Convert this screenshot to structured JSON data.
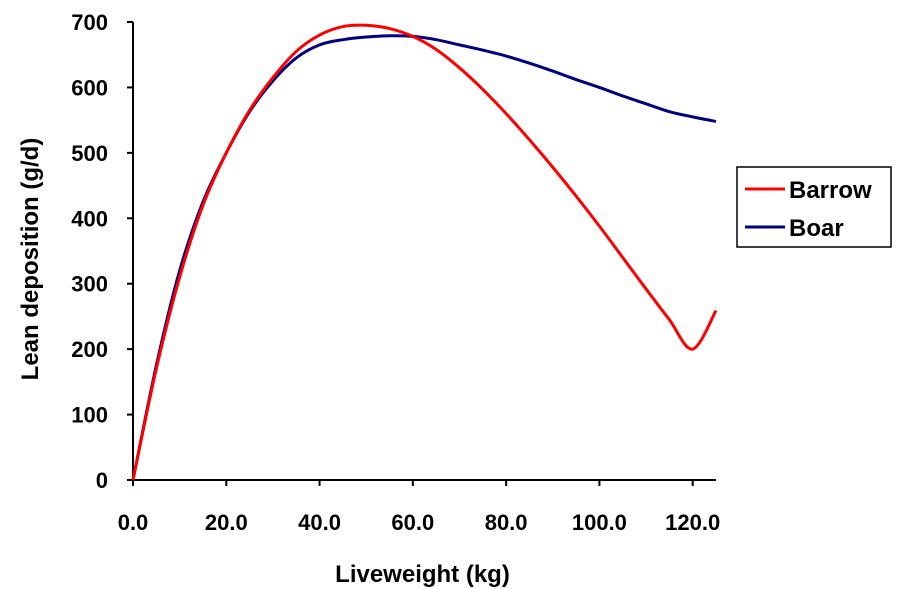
{
  "chart_data": {
    "type": "line",
    "title": "",
    "xlabel": "Liveweight (kg)",
    "ylabel": "Lean deposition (g/d)",
    "xlim": [
      0,
      125
    ],
    "ylim": [
      0,
      700
    ],
    "x_ticks": [
      0,
      20,
      40,
      60,
      80,
      100,
      120
    ],
    "x_tick_labels": [
      "0.0",
      "20.0",
      "40.0",
      "60.0",
      "80.0",
      "100.0",
      "120.0"
    ],
    "y_ticks": [
      0,
      100,
      200,
      300,
      400,
      500,
      600,
      700
    ],
    "y_tick_labels": [
      "0",
      "100",
      "200",
      "300",
      "400",
      "500",
      "600",
      "700"
    ],
    "grid": false,
    "legend_position": "right",
    "x": [
      0,
      5,
      10,
      15,
      20,
      25,
      30,
      35,
      40,
      45,
      50,
      55,
      60,
      65,
      70,
      75,
      80,
      85,
      90,
      95,
      100,
      105,
      110,
      115,
      120,
      125
    ],
    "series": [
      {
        "name": "Barrow",
        "color": "#ff0000",
        "values": [
          0,
          170,
          310,
          420,
          500,
          565,
          615,
          655,
          680,
          693,
          695,
          690,
          678,
          658,
          630,
          597,
          560,
          520,
          478,
          434,
          388,
          340,
          292,
          245,
          200,
          259
        ]
      },
      {
        "name": "Boar",
        "color": "#000080",
        "values": [
          0,
          175,
          320,
          425,
          500,
          563,
          610,
          645,
          665,
          673,
          677,
          679,
          678,
          673,
          665,
          657,
          648,
          637,
          625,
          612,
          600,
          587,
          575,
          563,
          555,
          548
        ]
      }
    ]
  }
}
